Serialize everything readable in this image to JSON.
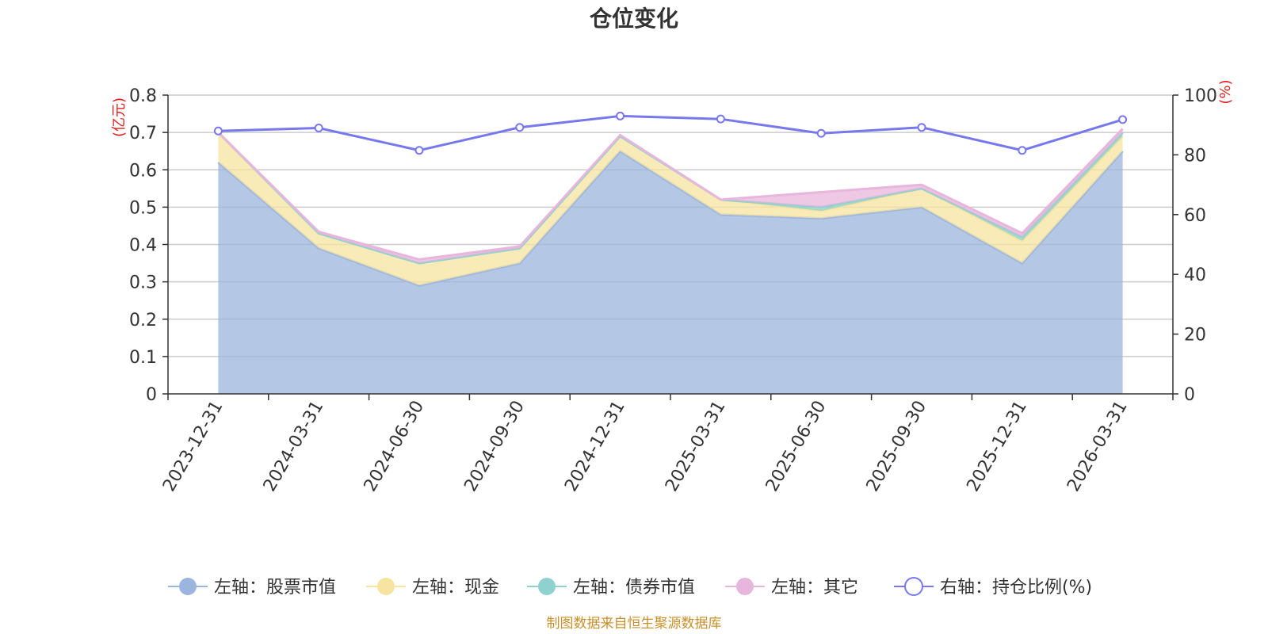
{
  "chart_data": {
    "type": "area",
    "title": "仓位变化",
    "categories": [
      "2023-12-31",
      "2024-03-31",
      "2024-06-30",
      "2024-09-30",
      "2024-12-31",
      "2025-03-31",
      "2025-06-30",
      "2025-09-30",
      "2025-12-31",
      "2026-03-31"
    ],
    "left_axis": {
      "unit": "(亿元)",
      "ylim": [
        0,
        0.8
      ],
      "ticks": [
        "0",
        "0.1",
        "0.2",
        "0.3",
        "0.4",
        "0.5",
        "0.6",
        "0.7",
        "0.8"
      ]
    },
    "right_axis": {
      "unit": "(%)",
      "ylim": [
        0,
        100
      ],
      "ticks": [
        "0",
        "20",
        "40",
        "60",
        "80",
        "100"
      ]
    },
    "series": [
      {
        "name": "左轴：股票市值",
        "axis": "left",
        "stack": true,
        "color": "#9bb5de",
        "values": [
          0.62,
          0.39,
          0.29,
          0.35,
          0.65,
          0.48,
          0.47,
          0.5,
          0.35,
          0.65
        ]
      },
      {
        "name": "左轴：现金",
        "axis": "left",
        "stack": true,
        "color": "#f7e4a0",
        "values": [
          0.08,
          0.04,
          0.06,
          0.04,
          0.04,
          0.04,
          0.02,
          0.05,
          0.06,
          0.04
        ]
      },
      {
        "name": "左轴：债券市值",
        "axis": "left",
        "stack": true,
        "color": "#8fd1cf",
        "values": [
          0,
          0,
          0,
          0,
          0,
          0,
          0.01,
          0,
          0.01,
          0.01
        ]
      },
      {
        "name": "左轴：其它",
        "axis": "left",
        "stack": true,
        "color": "#e8b6dc",
        "values": [
          0,
          0.004,
          0.01,
          0.005,
          0.003,
          0,
          0.04,
          0.01,
          0.01,
          0.01
        ]
      },
      {
        "name": "右轴：持仓比例(%)",
        "axis": "right",
        "stack": false,
        "color": "#7777ee",
        "values": [
          88.0,
          89.0,
          81.5,
          89.2,
          93.0,
          92.0,
          87.2,
          89.2,
          81.5,
          91.8
        ]
      }
    ]
  },
  "source_note": "制图数据来自恒生聚源数据库"
}
